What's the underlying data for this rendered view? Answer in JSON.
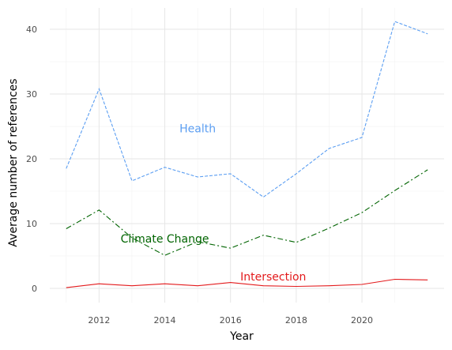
{
  "chart_data": {
    "type": "line",
    "xlabel": "Year",
    "ylabel": "Average number of references",
    "xlim": [
      2010.5,
      2022.5
    ],
    "ylim": [
      -2.2,
      43.3
    ],
    "x_ticks": [
      2012,
      2014,
      2016,
      2018,
      2020
    ],
    "y_ticks": [
      0,
      10,
      20,
      30,
      40
    ],
    "grid": true,
    "legend": "direct labels",
    "x": [
      2011,
      2012,
      2013,
      2014,
      2015,
      2016,
      2017,
      2018,
      2019,
      2020,
      2021,
      2022
    ],
    "series": [
      {
        "name": "Health",
        "color": "#5b9ef2",
        "dash": "dashed",
        "values": [
          18.5,
          30.8,
          16.6,
          18.7,
          17.2,
          17.7,
          14.1,
          17.7,
          21.6,
          23.3,
          41.2,
          39.3
        ],
        "label_at": [
          2015.0,
          24.7
        ]
      },
      {
        "name": "Climate Change",
        "color": "#006400",
        "dash": "dashdot",
        "values": [
          9.2,
          12.1,
          7.8,
          5.1,
          7.2,
          6.2,
          8.2,
          7.1,
          9.3,
          11.7,
          15.1,
          18.3
        ],
        "label_at": [
          2014.0,
          7.7
        ]
      },
      {
        "name": "Intersection",
        "color": "#e31a1c",
        "dash": "solid",
        "values": [
          0.1,
          0.7,
          0.4,
          0.7,
          0.4,
          0.9,
          0.4,
          0.3,
          0.4,
          0.6,
          1.4,
          1.3
        ],
        "label_at": [
          2017.3,
          1.8
        ]
      }
    ]
  }
}
